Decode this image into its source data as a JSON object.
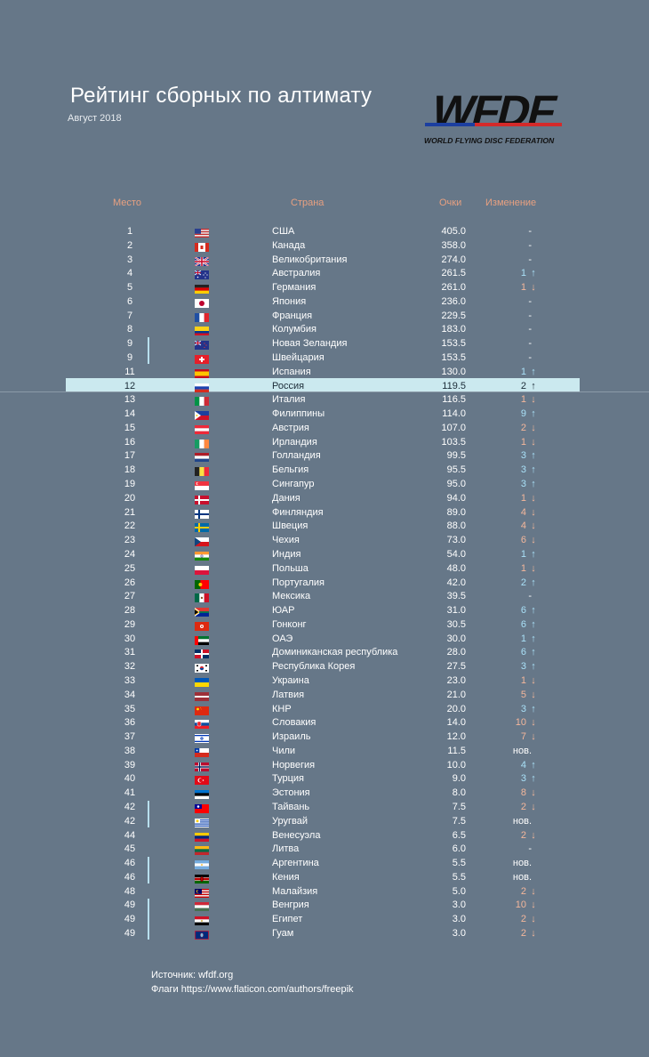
{
  "title": "Рейтинг сборных по алтимату",
  "subtitle": "Август 2018",
  "logo": {
    "wordmark": "WFDF",
    "tagline": "WORLD FLYING DISC FEDERATION"
  },
  "headers": {
    "rank": "Место",
    "country": "Страна",
    "points": "Очки",
    "change": "Изменение"
  },
  "colors": {
    "background": "#667788",
    "header": "#e7a080",
    "up": "#a9e0f7",
    "down": "#f4b79b",
    "highlight": "#cbe9ef"
  },
  "rows": [
    {
      "rank": "1",
      "country": "США",
      "points": "405.0",
      "change": "-",
      "dir": "none",
      "flag": "us"
    },
    {
      "rank": "2",
      "country": "Канада",
      "points": "358.0",
      "change": "-",
      "dir": "none",
      "flag": "ca"
    },
    {
      "rank": "3",
      "country": "Великобритания",
      "points": "274.0",
      "change": "-",
      "dir": "none",
      "flag": "gb"
    },
    {
      "rank": "4",
      "country": "Австралия",
      "points": "261.5",
      "change": "1",
      "dir": "up",
      "flag": "au"
    },
    {
      "rank": "5",
      "country": "Германия",
      "points": "261.0",
      "change": "1",
      "dir": "down",
      "flag": "de"
    },
    {
      "rank": "6",
      "country": "Япония",
      "points": "236.0",
      "change": "-",
      "dir": "none",
      "flag": "jp"
    },
    {
      "rank": "7",
      "country": "Франция",
      "points": "229.5",
      "change": "-",
      "dir": "none",
      "flag": "fr"
    },
    {
      "rank": "8",
      "country": "Колумбия",
      "points": "183.0",
      "change": "-",
      "dir": "none",
      "flag": "co"
    },
    {
      "rank": "9",
      "country": "Новая Зеландия",
      "points": "153.5",
      "change": "-",
      "dir": "none",
      "flag": "nz"
    },
    {
      "rank": "9",
      "country": "Швейцария",
      "points": "153.5",
      "change": "-",
      "dir": "none",
      "flag": "ch"
    },
    {
      "rank": "11",
      "country": "Испания",
      "points": "130.0",
      "change": "1",
      "dir": "up",
      "flag": "es"
    },
    {
      "rank": "12",
      "country": "Россия",
      "points": "119.5",
      "change": "2",
      "dir": "up",
      "flag": "ru",
      "selected": true
    },
    {
      "rank": "13",
      "country": "Италия",
      "points": "116.5",
      "change": "1",
      "dir": "down",
      "flag": "it"
    },
    {
      "rank": "14",
      "country": "Филиппины",
      "points": "114.0",
      "change": "9",
      "dir": "up",
      "flag": "ph"
    },
    {
      "rank": "15",
      "country": "Австрия",
      "points": "107.0",
      "change": "2",
      "dir": "down",
      "flag": "at"
    },
    {
      "rank": "16",
      "country": "Ирландия",
      "points": "103.5",
      "change": "1",
      "dir": "down",
      "flag": "ie"
    },
    {
      "rank": "17",
      "country": "Голландия",
      "points": "99.5",
      "change": "3",
      "dir": "up",
      "flag": "nl"
    },
    {
      "rank": "18",
      "country": "Бельгия",
      "points": "95.5",
      "change": "3",
      "dir": "up",
      "flag": "be"
    },
    {
      "rank": "19",
      "country": "Сингапур",
      "points": "95.0",
      "change": "3",
      "dir": "up",
      "flag": "sg"
    },
    {
      "rank": "20",
      "country": "Дания",
      "points": "94.0",
      "change": "1",
      "dir": "down",
      "flag": "dk"
    },
    {
      "rank": "21",
      "country": "Финляндия",
      "points": "89.0",
      "change": "4",
      "dir": "down",
      "flag": "fi"
    },
    {
      "rank": "22",
      "country": "Швеция",
      "points": "88.0",
      "change": "4",
      "dir": "down",
      "flag": "se"
    },
    {
      "rank": "23",
      "country": "Чехия",
      "points": "73.0",
      "change": "6",
      "dir": "down",
      "flag": "cz"
    },
    {
      "rank": "24",
      "country": "Индия",
      "points": "54.0",
      "change": "1",
      "dir": "up",
      "flag": "in"
    },
    {
      "rank": "25",
      "country": "Польша",
      "points": "48.0",
      "change": "1",
      "dir": "down",
      "flag": "pl"
    },
    {
      "rank": "26",
      "country": "Португалия",
      "points": "42.0",
      "change": "2",
      "dir": "up",
      "flag": "pt"
    },
    {
      "rank": "27",
      "country": "Мексика",
      "points": "39.5",
      "change": "-",
      "dir": "none",
      "flag": "mx"
    },
    {
      "rank": "28",
      "country": "ЮАР",
      "points": "31.0",
      "change": "6",
      "dir": "up",
      "flag": "za"
    },
    {
      "rank": "29",
      "country": "Гонконг",
      "points": "30.5",
      "change": "6",
      "dir": "up",
      "flag": "hk"
    },
    {
      "rank": "30",
      "country": "ОАЭ",
      "points": "30.0",
      "change": "1",
      "dir": "up",
      "flag": "ae"
    },
    {
      "rank": "31",
      "country": "Доминиканская республика",
      "points": "28.0",
      "change": "6",
      "dir": "up",
      "flag": "do"
    },
    {
      "rank": "32",
      "country": "Республика Корея",
      "points": "27.5",
      "change": "3",
      "dir": "up",
      "flag": "kr"
    },
    {
      "rank": "33",
      "country": "Украина",
      "points": "23.0",
      "change": "1",
      "dir": "down",
      "flag": "ua"
    },
    {
      "rank": "34",
      "country": "Латвия",
      "points": "21.0",
      "change": "5",
      "dir": "down",
      "flag": "lv"
    },
    {
      "rank": "35",
      "country": "КНР",
      "points": "20.0",
      "change": "3",
      "dir": "up",
      "flag": "cn"
    },
    {
      "rank": "36",
      "country": "Словакия",
      "points": "14.0",
      "change": "10",
      "dir": "down",
      "flag": "sk"
    },
    {
      "rank": "37",
      "country": "Израиль",
      "points": "12.0",
      "change": "7",
      "dir": "down",
      "flag": "il"
    },
    {
      "rank": "38",
      "country": "Чили",
      "points": "11.5",
      "change": "нов.",
      "dir": "none",
      "flag": "cl"
    },
    {
      "rank": "39",
      "country": "Норвегия",
      "points": "10.0",
      "change": "4",
      "dir": "up",
      "flag": "no"
    },
    {
      "rank": "40",
      "country": "Турция",
      "points": "9.0",
      "change": "3",
      "dir": "up",
      "flag": "tr"
    },
    {
      "rank": "41",
      "country": "Эстония",
      "points": "8.0",
      "change": "8",
      "dir": "down",
      "flag": "ee"
    },
    {
      "rank": "42",
      "country": "Тайвань",
      "points": "7.5",
      "change": "2",
      "dir": "down",
      "flag": "tw"
    },
    {
      "rank": "42",
      "country": "Уругвай",
      "points": "7.5",
      "change": "нов.",
      "dir": "none",
      "flag": "uy"
    },
    {
      "rank": "44",
      "country": "Венесуэла",
      "points": "6.5",
      "change": "2",
      "dir": "down",
      "flag": "ve"
    },
    {
      "rank": "45",
      "country": "Литва",
      "points": "6.0",
      "change": "-",
      "dir": "none",
      "flag": "lt"
    },
    {
      "rank": "46",
      "country": "Аргентина",
      "points": "5.5",
      "change": "нов.",
      "dir": "none",
      "flag": "ar"
    },
    {
      "rank": "46",
      "country": "Кения",
      "points": "5.5",
      "change": "нов.",
      "dir": "none",
      "flag": "ke"
    },
    {
      "rank": "48",
      "country": "Малайзия",
      "points": "5.0",
      "change": "2",
      "dir": "down",
      "flag": "my"
    },
    {
      "rank": "49",
      "country": "Венгрия",
      "points": "3.0",
      "change": "10",
      "dir": "down",
      "flag": "hu"
    },
    {
      "rank": "49",
      "country": "Египет",
      "points": "3.0",
      "change": "2",
      "dir": "down",
      "flag": "eg"
    },
    {
      "rank": "49",
      "country": "Гуам",
      "points": "3.0",
      "change": "2",
      "dir": "down",
      "flag": "gu"
    }
  ],
  "footer": {
    "source": "Источник: wfdf.org",
    "flags": "Флаги https://www.flaticon.com/authors/freepik"
  }
}
